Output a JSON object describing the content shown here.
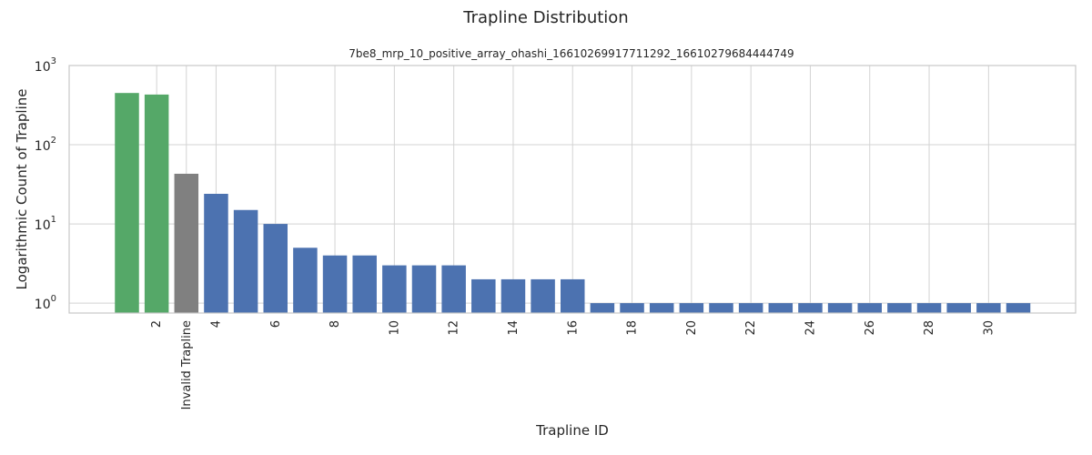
{
  "chart_data": {
    "type": "bar",
    "title": "Trapline Distribution",
    "subtitle": "7be8_mrp_10_positive_array_ohashi_16610269917711292_16610279684444749",
    "xlabel": "Trapline ID",
    "ylabel": "Logarithmic Count of Trapline",
    "yscale": "log",
    "ylim": [
      0.75,
      1000
    ],
    "yticks": [
      {
        "base": "10",
        "exp": "0",
        "value": 1
      },
      {
        "base": "10",
        "exp": "1",
        "value": 10
      },
      {
        "base": "10",
        "exp": "2",
        "value": 100
      },
      {
        "base": "10",
        "exp": "3",
        "value": 1000
      }
    ],
    "grid": true,
    "bars": [
      {
        "pos": 1,
        "value": 450,
        "color": "#55a868"
      },
      {
        "pos": 2,
        "value": 430,
        "color": "#55a868"
      },
      {
        "pos": 3,
        "value": 43,
        "color": "#808080"
      },
      {
        "pos": 4,
        "value": 24,
        "color": "#4c72b0"
      },
      {
        "pos": 5,
        "value": 15,
        "color": "#4c72b0"
      },
      {
        "pos": 6,
        "value": 10,
        "color": "#4c72b0"
      },
      {
        "pos": 7,
        "value": 5,
        "color": "#4c72b0"
      },
      {
        "pos": 8,
        "value": 4,
        "color": "#4c72b0"
      },
      {
        "pos": 9,
        "value": 4,
        "color": "#4c72b0"
      },
      {
        "pos": 10,
        "value": 3,
        "color": "#4c72b0"
      },
      {
        "pos": 11,
        "value": 3,
        "color": "#4c72b0"
      },
      {
        "pos": 12,
        "value": 3,
        "color": "#4c72b0"
      },
      {
        "pos": 13,
        "value": 2,
        "color": "#4c72b0"
      },
      {
        "pos": 14,
        "value": 2,
        "color": "#4c72b0"
      },
      {
        "pos": 15,
        "value": 2,
        "color": "#4c72b0"
      },
      {
        "pos": 16,
        "value": 2,
        "color": "#4c72b0"
      },
      {
        "pos": 17,
        "value": 1,
        "color": "#4c72b0"
      },
      {
        "pos": 18,
        "value": 1,
        "color": "#4c72b0"
      },
      {
        "pos": 19,
        "value": 1,
        "color": "#4c72b0"
      },
      {
        "pos": 20,
        "value": 1,
        "color": "#4c72b0"
      },
      {
        "pos": 21,
        "value": 1,
        "color": "#4c72b0"
      },
      {
        "pos": 22,
        "value": 1,
        "color": "#4c72b0"
      },
      {
        "pos": 23,
        "value": 1,
        "color": "#4c72b0"
      },
      {
        "pos": 24,
        "value": 1,
        "color": "#4c72b0"
      },
      {
        "pos": 25,
        "value": 1,
        "color": "#4c72b0"
      },
      {
        "pos": 26,
        "value": 1,
        "color": "#4c72b0"
      },
      {
        "pos": 27,
        "value": 1,
        "color": "#4c72b0"
      },
      {
        "pos": 28,
        "value": 1,
        "color": "#4c72b0"
      },
      {
        "pos": 29,
        "value": 1,
        "color": "#4c72b0"
      },
      {
        "pos": 30,
        "value": 1,
        "color": "#4c72b0"
      },
      {
        "pos": 31,
        "value": 1,
        "color": "#4c72b0"
      }
    ],
    "xticks": [
      {
        "pos": 2,
        "label": "2"
      },
      {
        "pos": 3,
        "label": "Invalid Trapline"
      },
      {
        "pos": 4,
        "label": "4"
      },
      {
        "pos": 6,
        "label": "6"
      },
      {
        "pos": 8,
        "label": "8"
      },
      {
        "pos": 10,
        "label": "10"
      },
      {
        "pos": 12,
        "label": "12"
      },
      {
        "pos": 14,
        "label": "14"
      },
      {
        "pos": 16,
        "label": "16"
      },
      {
        "pos": 18,
        "label": "18"
      },
      {
        "pos": 20,
        "label": "20"
      },
      {
        "pos": 22,
        "label": "22"
      },
      {
        "pos": 24,
        "label": "24"
      },
      {
        "pos": 26,
        "label": "26"
      },
      {
        "pos": 28,
        "label": "28"
      },
      {
        "pos": 30,
        "label": "30"
      }
    ]
  }
}
